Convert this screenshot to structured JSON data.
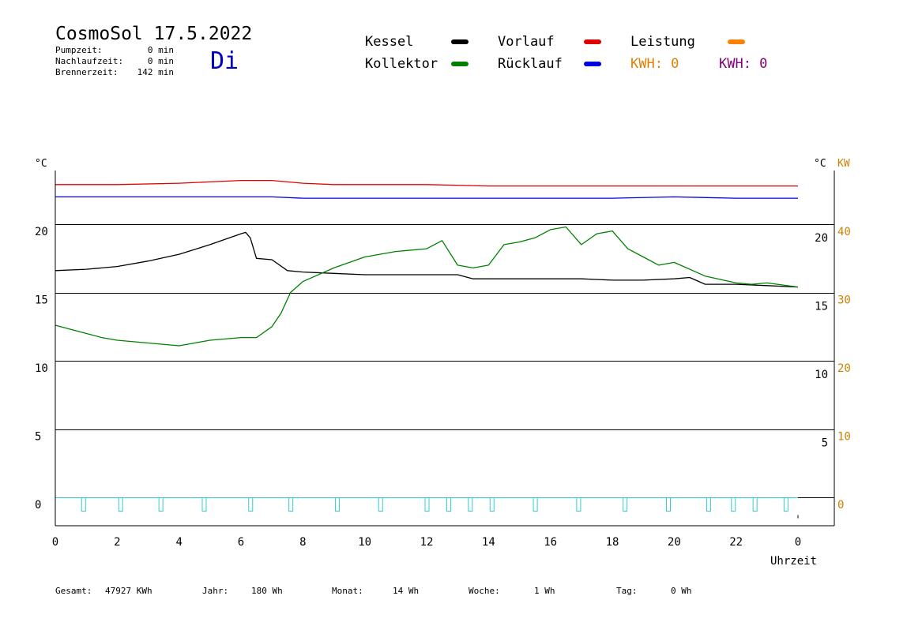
{
  "header": {
    "title": "CosmoSol 17.5.2022",
    "day": "Di",
    "stats": [
      {
        "label": "Pumpzeit:",
        "value": "0 min"
      },
      {
        "label": "Nachlaufzeit:",
        "value": "0 min"
      },
      {
        "label": "Brennerzeit:",
        "value": "142 min"
      }
    ]
  },
  "legend": {
    "items": [
      {
        "label": "Kessel",
        "color": "#000000"
      },
      {
        "label": "Kollektor",
        "color": "#008000"
      },
      {
        "label": "Vorlauf",
        "color": "#e00000"
      },
      {
        "label": "Rücklauf",
        "color": "#0000e0"
      },
      {
        "label": "Leistung",
        "color": "#ff8000"
      }
    ],
    "kwh": [
      {
        "text": "KWH: 0",
        "color": "#e08000"
      },
      {
        "text": "KWH: 0",
        "color": "#800080"
      }
    ]
  },
  "axes": {
    "left_unit": "°C",
    "right_unit": "°C",
    "kw_unit": "KW",
    "x_label": "Uhrzeit",
    "x_ticks": [
      "0",
      "2",
      "4",
      "6",
      "8",
      "10",
      "12",
      "14",
      "16",
      "18",
      "20",
      "22",
      "0"
    ],
    "left_ticks": [
      "20",
      "15",
      "10",
      "5",
      "0"
    ],
    "right_ticks": [
      "20",
      "15",
      "10",
      "5"
    ],
    "kw_ticks": [
      "40",
      "30",
      "20",
      "10",
      "0"
    ]
  },
  "footer": [
    {
      "label": "Gesamt:",
      "value": "47927 KWh"
    },
    {
      "label": "Jahr:",
      "value": "180 Wh"
    },
    {
      "label": "Monat:",
      "value": "14 Wh"
    },
    {
      "label": "Woche:",
      "value": "1 Wh"
    },
    {
      "label": "Tag:",
      "value": "0 Wh"
    }
  ],
  "chart_data": {
    "type": "line",
    "xlabel": "Uhrzeit",
    "ylabel": "°C",
    "xlim": [
      0,
      24
    ],
    "ylim": [
      -2,
      24
    ],
    "grid": true,
    "series": [
      {
        "name": "Vorlauf",
        "color": "#e00000",
        "x": [
          0,
          2,
          4,
          5,
          6,
          7,
          7.5,
          8,
          9,
          10,
          12,
          14,
          16,
          18,
          20,
          22,
          24
        ],
        "y": [
          22.9,
          22.9,
          23.0,
          23.1,
          23.2,
          23.2,
          23.1,
          23.0,
          22.9,
          22.9,
          22.9,
          22.8,
          22.8,
          22.8,
          22.8,
          22.8,
          22.8
        ]
      },
      {
        "name": "Rücklauf",
        "color": "#0000e0",
        "x": [
          0,
          2,
          4,
          6,
          7,
          8,
          10,
          12,
          14,
          16,
          18,
          20,
          22,
          24
        ],
        "y": [
          22.0,
          22.0,
          22.0,
          22.0,
          22.0,
          21.9,
          21.9,
          21.9,
          21.9,
          21.9,
          21.9,
          22.0,
          21.9,
          21.9
        ]
      },
      {
        "name": "Kessel",
        "color": "#000000",
        "x": [
          0,
          1,
          2,
          3,
          4,
          5,
          5.5,
          6,
          6.15,
          6.3,
          6.5,
          7,
          7.5,
          8,
          9,
          10,
          11,
          12,
          13,
          13.5,
          14,
          15,
          16,
          17,
          18,
          19,
          20,
          20.5,
          21,
          22,
          23,
          24
        ],
        "y": [
          16.6,
          16.7,
          16.9,
          17.3,
          17.8,
          18.5,
          18.9,
          19.3,
          19.4,
          19.0,
          17.5,
          17.4,
          16.6,
          16.5,
          16.4,
          16.3,
          16.3,
          16.3,
          16.3,
          16.0,
          16.0,
          16.0,
          16.0,
          16.0,
          15.9,
          15.9,
          16.0,
          16.1,
          15.6,
          15.6,
          15.5,
          15.4
        ]
      },
      {
        "name": "Kollektor",
        "color": "#008000",
        "x": [
          0,
          0.5,
          1,
          1.5,
          2,
          3,
          4,
          4.5,
          5,
          6,
          6.5,
          7,
          7.3,
          7.6,
          8,
          9,
          10,
          11,
          12,
          12.5,
          13,
          13.5,
          14,
          14.5,
          15,
          15.5,
          16,
          16.5,
          17,
          17.5,
          18,
          18.5,
          19,
          19.5,
          20,
          21,
          22,
          22.5,
          23,
          24
        ],
        "y": [
          12.6,
          12.3,
          12.0,
          11.7,
          11.5,
          11.3,
          11.1,
          11.3,
          11.5,
          11.7,
          11.7,
          12.5,
          13.5,
          15.0,
          15.8,
          16.8,
          17.6,
          18.0,
          18.2,
          18.8,
          17.0,
          16.8,
          17.0,
          18.5,
          18.7,
          19.0,
          19.6,
          19.8,
          18.5,
          19.3,
          19.5,
          18.2,
          17.6,
          17.0,
          17.2,
          16.2,
          15.7,
          15.6,
          15.7,
          15.4
        ]
      }
    ],
    "pump_pulses_hours": [
      0.9,
      2.1,
      3.4,
      4.8,
      6.3,
      7.6,
      9.1,
      10.5,
      12.0,
      12.7,
      13.4,
      14.1,
      15.5,
      16.9,
      18.4,
      19.8,
      21.1,
      21.9,
      22.6,
      23.6
    ]
  }
}
